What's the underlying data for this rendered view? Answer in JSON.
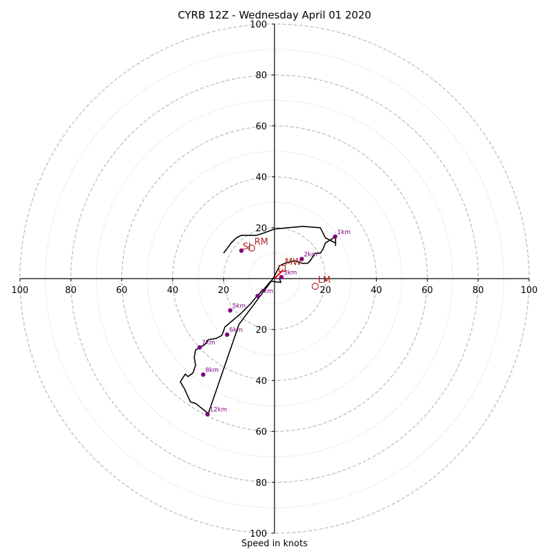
{
  "chart_data": {
    "type": "line",
    "title": "CYRB 12Z - Wednesday April 01 2020",
    "xlabel": "Speed in knots",
    "ylabel": "",
    "xlim": [
      -100,
      100
    ],
    "ylim": [
      -100,
      100
    ],
    "rings_dashed": [
      20,
      40,
      60,
      80,
      100
    ],
    "rings_dotted": [
      10,
      30,
      50,
      70,
      90
    ],
    "ticks": {
      "x_left": [
        "100",
        "80",
        "60",
        "40",
        "20"
      ],
      "x_right": [
        "20",
        "40",
        "60",
        "80",
        "100"
      ],
      "y_top": [
        "20",
        "40",
        "60",
        "80",
        "100"
      ],
      "y_bottom": [
        "20",
        "40",
        "60",
        "80",
        "100"
      ]
    },
    "hodograph": {
      "color": "#000000",
      "u": [
        2,
        2.5,
        -1.5,
        -4,
        -7,
        -9.5,
        -13,
        -19.5,
        -20.5,
        -21,
        -23,
        -26,
        -27.5,
        -31,
        -31.5,
        -31,
        -32,
        -34,
        -35,
        -37,
        -35.5,
        -33,
        -31,
        -26,
        -15,
        -14,
        -2,
        0,
        2,
        4,
        8,
        11,
        13,
        14,
        15,
        16,
        18,
        19,
        20,
        24,
        24,
        24,
        20,
        18,
        11,
        0,
        -4,
        -7,
        -10,
        -13,
        -15,
        -17,
        -20
      ],
      "v": [
        0,
        -1.5,
        -1,
        -4,
        -7,
        -10,
        -13.5,
        -19,
        -22,
        -22.5,
        -23.5,
        -24,
        -26,
        -28,
        -31,
        -34,
        -37,
        -38.5,
        -37.5,
        -40.5,
        -43,
        -48.5,
        -49,
        -53,
        -21,
        -18,
        -2,
        1,
        5,
        6,
        7,
        6,
        6,
        7,
        8.5,
        10,
        10,
        11.5,
        14,
        16.5,
        13,
        14,
        16,
        20,
        20.5,
        19.5,
        18,
        17,
        17,
        17,
        16,
        14,
        10
      ]
    },
    "height_markers": {
      "color": "#800080",
      "labels": [
        "1km",
        "2km",
        "3km",
        "4km",
        "5km",
        "6km",
        "7km",
        "8km",
        "12km"
      ],
      "u": [
        23.8,
        10.7,
        2.7,
        -6.6,
        -17.4,
        -18.6,
        -29.4,
        -28,
        -26.3
      ],
      "v": [
        16.5,
        7.7,
        0.6,
        -6.8,
        -12.5,
        -22,
        -27,
        -37.7,
        -53.3
      ]
    },
    "extra_point": {
      "label": "",
      "u": -13,
      "v": 11
    },
    "storm_motion": [
      {
        "label": "RM",
        "marker": "circle",
        "u": -9,
        "v": 12
      },
      {
        "label": "MW",
        "marker": "square",
        "u": 3,
        "v": 4
      },
      {
        "label": "LM",
        "marker": "circle",
        "u": 16,
        "v": -3
      }
    ],
    "shear_vector": {
      "color": "#ff0000",
      "u0": 0,
      "v0": 0,
      "u1": 3.5,
      "v1": 3.5
    },
    "partial_label": "SI"
  }
}
